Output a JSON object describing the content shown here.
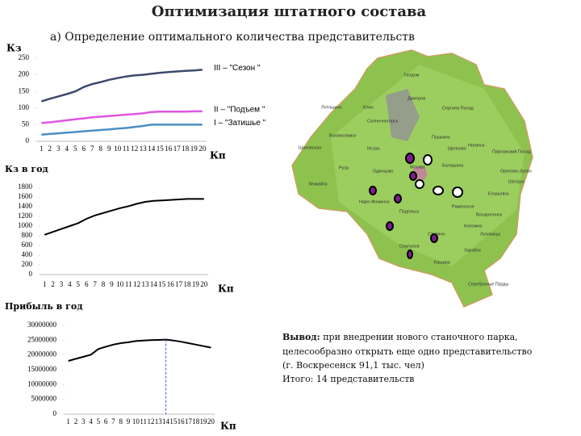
{
  "title": "Оптимизация штатного состава",
  "subtitle": "а) Определение оптимального количества представительств",
  "chart_data": [
    {
      "type": "line",
      "ylabel": "Кз",
      "xlabel": "Кп",
      "categories": [
        "1",
        "2",
        "3",
        "4",
        "5",
        "6",
        "7",
        "8",
        "9",
        "10",
        "11",
        "12",
        "13",
        "14",
        "15",
        "16",
        "17",
        "18",
        "19",
        "20"
      ],
      "series": [
        {
          "name": "III – \"Сезон \"",
          "color": "#3d4a6e",
          "values": [
            120,
            128,
            135,
            142,
            150,
            163,
            172,
            178,
            185,
            190,
            195,
            198,
            200,
            203,
            206,
            208,
            210,
            212,
            213,
            215
          ]
        },
        {
          "name": "II – \"Подъем \"",
          "color": "#e055e0",
          "values": [
            55,
            57,
            60,
            63,
            66,
            69,
            72,
            74,
            76,
            78,
            80,
            82,
            84,
            88,
            89,
            89,
            89,
            89,
            90,
            90
          ]
        },
        {
          "name": "I – \"Затишье \"",
          "color": "#4a8fc4",
          "values": [
            20,
            22,
            24,
            26,
            28,
            30,
            32,
            34,
            36,
            38,
            40,
            43,
            46,
            50,
            50,
            50,
            50,
            50,
            50,
            50
          ]
        }
      ],
      "ylim": [
        0,
        250
      ],
      "yticks": [
        0,
        50,
        100,
        150,
        200,
        250
      ]
    },
    {
      "type": "line",
      "ylabel": "Кз в год",
      "xlabel": "Кп",
      "categories": [
        "1",
        "2",
        "3",
        "4",
        "5",
        "6",
        "7",
        "8",
        "9",
        "10",
        "11",
        "12",
        "13",
        "14",
        "15",
        "16",
        "17",
        "18",
        "19",
        "20"
      ],
      "values": [
        820,
        880,
        940,
        1000,
        1060,
        1150,
        1220,
        1270,
        1320,
        1370,
        1410,
        1460,
        1500,
        1520,
        1530,
        1540,
        1550,
        1560,
        1560,
        1560
      ],
      "color": "#000000",
      "ylim": [
        0,
        1800
      ],
      "yticks": [
        0,
        200,
        400,
        600,
        800,
        1000,
        1200,
        1400,
        1600,
        1800
      ]
    },
    {
      "type": "line",
      "ylabel": "Прибыль в год",
      "xlabel": "Кп",
      "categories": [
        "1",
        "2",
        "3",
        "4",
        "5",
        "6",
        "7",
        "8",
        "9",
        "10",
        "11",
        "12",
        "13",
        "14",
        "15",
        "16",
        "17",
        "18",
        "19",
        "20"
      ],
      "values": [
        18000000,
        18700000,
        19400000,
        20100000,
        22000000,
        22800000,
        23500000,
        24000000,
        24300000,
        24700000,
        24900000,
        25000000,
        25100000,
        25200000,
        24900000,
        24500000,
        24000000,
        23500000,
        23000000,
        22500000
      ],
      "color": "#000000",
      "ylim": [
        0,
        30000000
      ],
      "yticks": [
        0,
        5000000,
        10000000,
        15000000,
        20000000,
        25000000,
        30000000
      ],
      "marker_index": 13
    }
  ],
  "conclusion": {
    "label": "Вывод:",
    "lines": [
      " при внедрении нового станочного парка,",
      "целесообразно открыть еще одно представительство",
      "(г. Воскресенск 91,1 тыс. чел)",
      " Итого: 14 представительств"
    ]
  },
  "map": {
    "labels": [
      "Талдом",
      "Дмитров",
      "Сергиев Посад",
      "Клин",
      "Лотошино",
      "Солнечногорск",
      "Пушкино",
      "Щелково",
      "Шаховская",
      "Волоколамск",
      "Истра",
      "Ногинск",
      "Павловский Посад",
      "Руза",
      "Одинцово",
      "Москва",
      "Балашиха",
      "Орехово-Зуево",
      "Можайск",
      "Наро-Фоминск",
      "Подольск",
      "Раменское",
      "Шатура",
      "Воскресенск",
      "Егорьевск",
      "Серпухов",
      "Ступино",
      "Коломна",
      "Луховицы",
      "Кашира",
      "Зарайск",
      "Серебряные Пруды"
    ]
  }
}
